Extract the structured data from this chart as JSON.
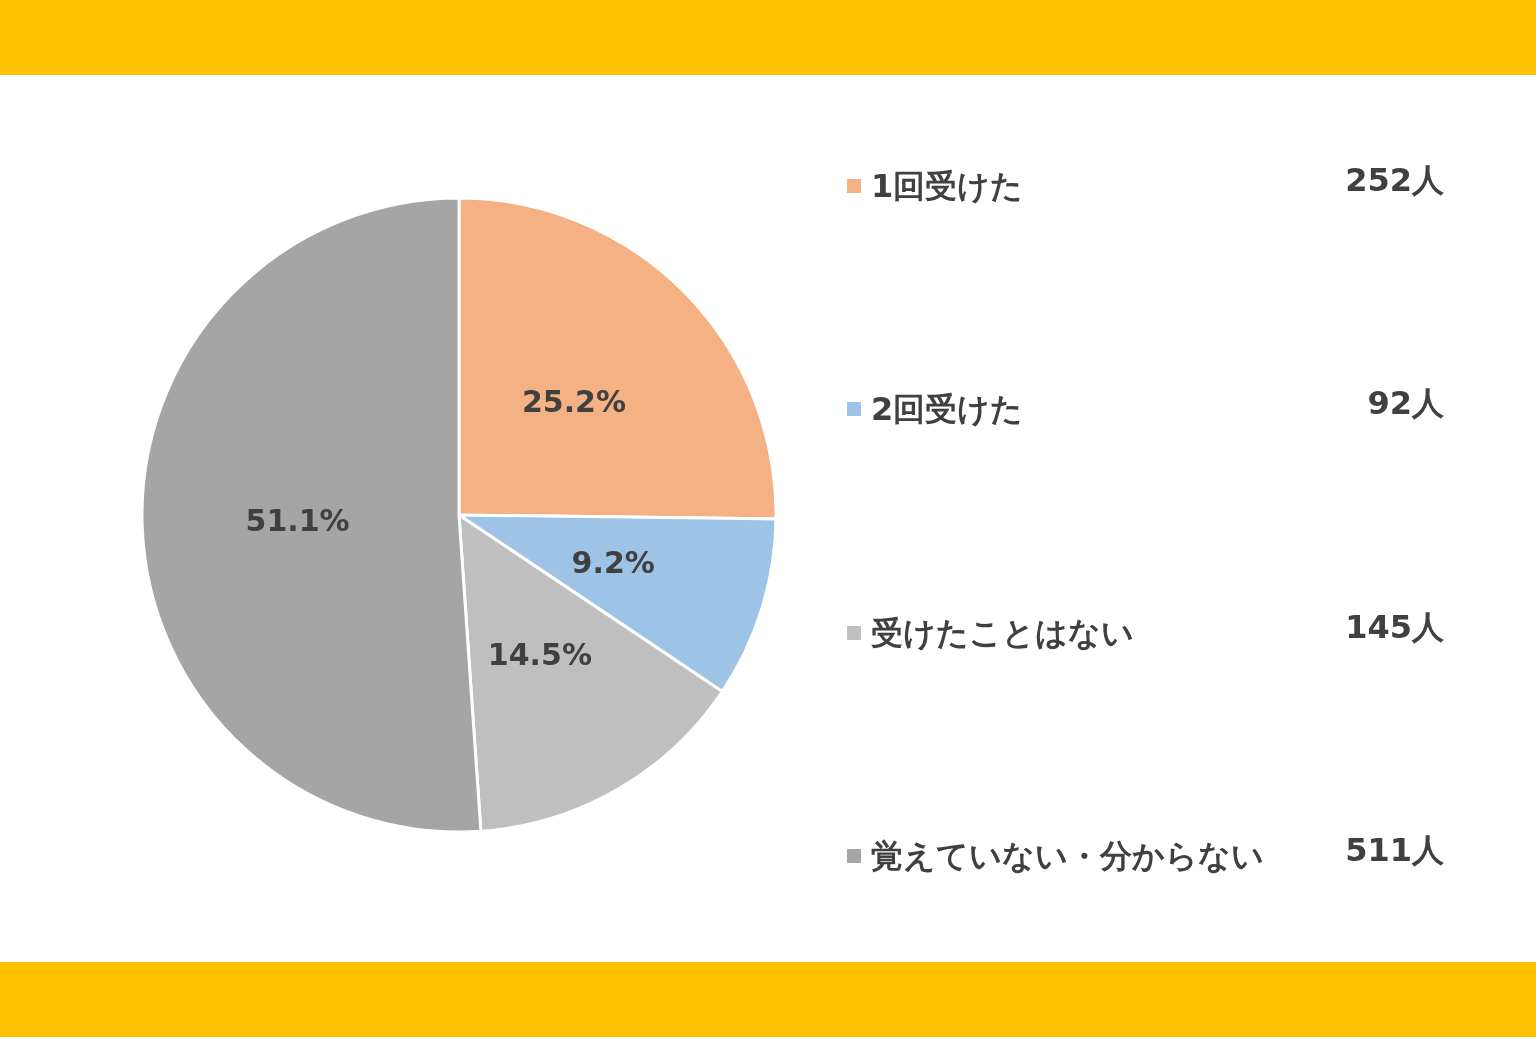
{
  "chart_data": {
    "type": "pie",
    "categories": [
      "1回受けた",
      "2回受けた",
      "受けたことはない",
      "覚えていない・分からない"
    ],
    "values": [
      25.2,
      9.2,
      14.5,
      51.1
    ],
    "value_labels": [
      "25.2%",
      "9.2%",
      "14.5%",
      "51.1%"
    ],
    "colors": [
      "#f4b183",
      "#9dc3e6",
      "#bfbfbf",
      "#a5a5a5"
    ],
    "annotations": [
      "252人",
      "92人",
      "145人",
      "511人"
    ],
    "legend": "right"
  }
}
